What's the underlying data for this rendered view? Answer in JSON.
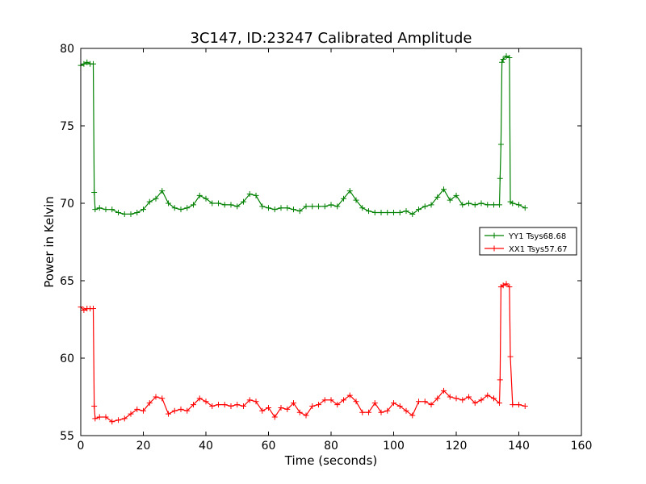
{
  "chart_data": {
    "type": "line",
    "title": "3C147, ID:23247 Calibrated Amplitude",
    "xlabel": "Time (seconds)",
    "ylabel": "Power in Kelvin",
    "xlim": [
      0,
      160
    ],
    "ylim": [
      55,
      80
    ],
    "xticks": [
      0,
      20,
      40,
      60,
      80,
      100,
      120,
      140,
      160
    ],
    "yticks": [
      55,
      60,
      65,
      70,
      75,
      80
    ],
    "grid": false,
    "legend_position": "center-right",
    "marker": "+",
    "series": [
      {
        "name": "YY1 Tsys68.68",
        "color": "#008000",
        "points": [
          [
            0,
            78.9
          ],
          [
            1,
            79.0
          ],
          [
            2,
            79.1
          ],
          [
            3,
            79.0
          ],
          [
            4,
            79.0
          ],
          [
            4.3,
            70.7
          ],
          [
            4.6,
            69.6
          ],
          [
            6,
            69.7
          ],
          [
            8,
            69.6
          ],
          [
            10,
            69.6
          ],
          [
            12,
            69.4
          ],
          [
            14,
            69.3
          ],
          [
            16,
            69.3
          ],
          [
            18,
            69.4
          ],
          [
            20,
            69.6
          ],
          [
            22,
            70.1
          ],
          [
            24,
            70.3
          ],
          [
            26,
            70.8
          ],
          [
            28,
            70.0
          ],
          [
            30,
            69.7
          ],
          [
            32,
            69.6
          ],
          [
            34,
            69.7
          ],
          [
            36,
            69.9
          ],
          [
            38,
            70.5
          ],
          [
            40,
            70.3
          ],
          [
            42,
            70.0
          ],
          [
            44,
            70.0
          ],
          [
            46,
            69.9
          ],
          [
            48,
            69.9
          ],
          [
            50,
            69.8
          ],
          [
            52,
            70.1
          ],
          [
            54,
            70.6
          ],
          [
            56,
            70.5
          ],
          [
            58,
            69.8
          ],
          [
            60,
            69.7
          ],
          [
            62,
            69.6
          ],
          [
            64,
            69.7
          ],
          [
            66,
            69.7
          ],
          [
            68,
            69.6
          ],
          [
            70,
            69.5
          ],
          [
            72,
            69.8
          ],
          [
            74,
            69.8
          ],
          [
            76,
            69.8
          ],
          [
            78,
            69.8
          ],
          [
            80,
            69.9
          ],
          [
            82,
            69.8
          ],
          [
            84,
            70.3
          ],
          [
            86,
            70.8
          ],
          [
            88,
            70.2
          ],
          [
            90,
            69.7
          ],
          [
            92,
            69.5
          ],
          [
            94,
            69.4
          ],
          [
            96,
            69.4
          ],
          [
            98,
            69.4
          ],
          [
            100,
            69.4
          ],
          [
            102,
            69.4
          ],
          [
            104,
            69.5
          ],
          [
            106,
            69.3
          ],
          [
            108,
            69.6
          ],
          [
            110,
            69.8
          ],
          [
            112,
            69.9
          ],
          [
            114,
            70.4
          ],
          [
            116,
            70.9
          ],
          [
            118,
            70.2
          ],
          [
            120,
            70.5
          ],
          [
            122,
            69.9
          ],
          [
            124,
            70.0
          ],
          [
            126,
            69.9
          ],
          [
            128,
            70.0
          ],
          [
            130,
            69.9
          ],
          [
            132,
            69.9
          ],
          [
            133.8,
            69.9
          ],
          [
            134,
            71.6
          ],
          [
            134.3,
            73.8
          ],
          [
            134.6,
            79.1
          ],
          [
            135,
            79.3
          ],
          [
            136,
            79.5
          ],
          [
            137,
            79.4
          ],
          [
            137.3,
            70.1
          ],
          [
            138,
            70.0
          ],
          [
            140,
            69.9
          ],
          [
            142,
            69.7
          ]
        ]
      },
      {
        "name": "XX1 Tsys57.67",
        "color": "#ff0000",
        "points": [
          [
            0,
            63.3
          ],
          [
            1,
            63.1
          ],
          [
            2,
            63.2
          ],
          [
            3,
            63.2
          ],
          [
            4,
            63.2
          ],
          [
            4.3,
            56.9
          ],
          [
            4.6,
            56.1
          ],
          [
            6,
            56.2
          ],
          [
            8,
            56.2
          ],
          [
            10,
            55.9
          ],
          [
            12,
            56.0
          ],
          [
            14,
            56.1
          ],
          [
            16,
            56.4
          ],
          [
            18,
            56.7
          ],
          [
            20,
            56.6
          ],
          [
            22,
            57.1
          ],
          [
            24,
            57.5
          ],
          [
            26,
            57.4
          ],
          [
            28,
            56.4
          ],
          [
            30,
            56.6
          ],
          [
            32,
            56.7
          ],
          [
            34,
            56.6
          ],
          [
            36,
            57.0
          ],
          [
            38,
            57.4
          ],
          [
            40,
            57.2
          ],
          [
            42,
            56.9
          ],
          [
            44,
            57.0
          ],
          [
            46,
            57.0
          ],
          [
            48,
            56.9
          ],
          [
            50,
            57.0
          ],
          [
            52,
            56.9
          ],
          [
            54,
            57.3
          ],
          [
            56,
            57.2
          ],
          [
            58,
            56.6
          ],
          [
            60,
            56.8
          ],
          [
            62,
            56.2
          ],
          [
            64,
            56.8
          ],
          [
            66,
            56.7
          ],
          [
            68,
            57.1
          ],
          [
            70,
            56.5
          ],
          [
            72,
            56.3
          ],
          [
            74,
            56.9
          ],
          [
            76,
            57.0
          ],
          [
            78,
            57.3
          ],
          [
            80,
            57.3
          ],
          [
            82,
            57.0
          ],
          [
            84,
            57.3
          ],
          [
            86,
            57.6
          ],
          [
            88,
            57.2
          ],
          [
            90,
            56.5
          ],
          [
            92,
            56.5
          ],
          [
            94,
            57.1
          ],
          [
            96,
            56.5
          ],
          [
            98,
            56.6
          ],
          [
            100,
            57.1
          ],
          [
            102,
            56.9
          ],
          [
            104,
            56.6
          ],
          [
            106,
            56.3
          ],
          [
            108,
            57.2
          ],
          [
            110,
            57.2
          ],
          [
            112,
            57.0
          ],
          [
            114,
            57.4
          ],
          [
            116,
            57.9
          ],
          [
            118,
            57.5
          ],
          [
            120,
            57.4
          ],
          [
            122,
            57.3
          ],
          [
            124,
            57.5
          ],
          [
            126,
            57.1
          ],
          [
            128,
            57.3
          ],
          [
            130,
            57.6
          ],
          [
            132,
            57.4
          ],
          [
            133.8,
            57.1
          ],
          [
            134,
            58.6
          ],
          [
            134.3,
            64.6
          ],
          [
            135,
            64.7
          ],
          [
            136,
            64.8
          ],
          [
            137,
            64.6
          ],
          [
            137.3,
            60.1
          ],
          [
            138,
            57.0
          ],
          [
            140,
            57.0
          ],
          [
            142,
            56.9
          ]
        ]
      }
    ]
  }
}
